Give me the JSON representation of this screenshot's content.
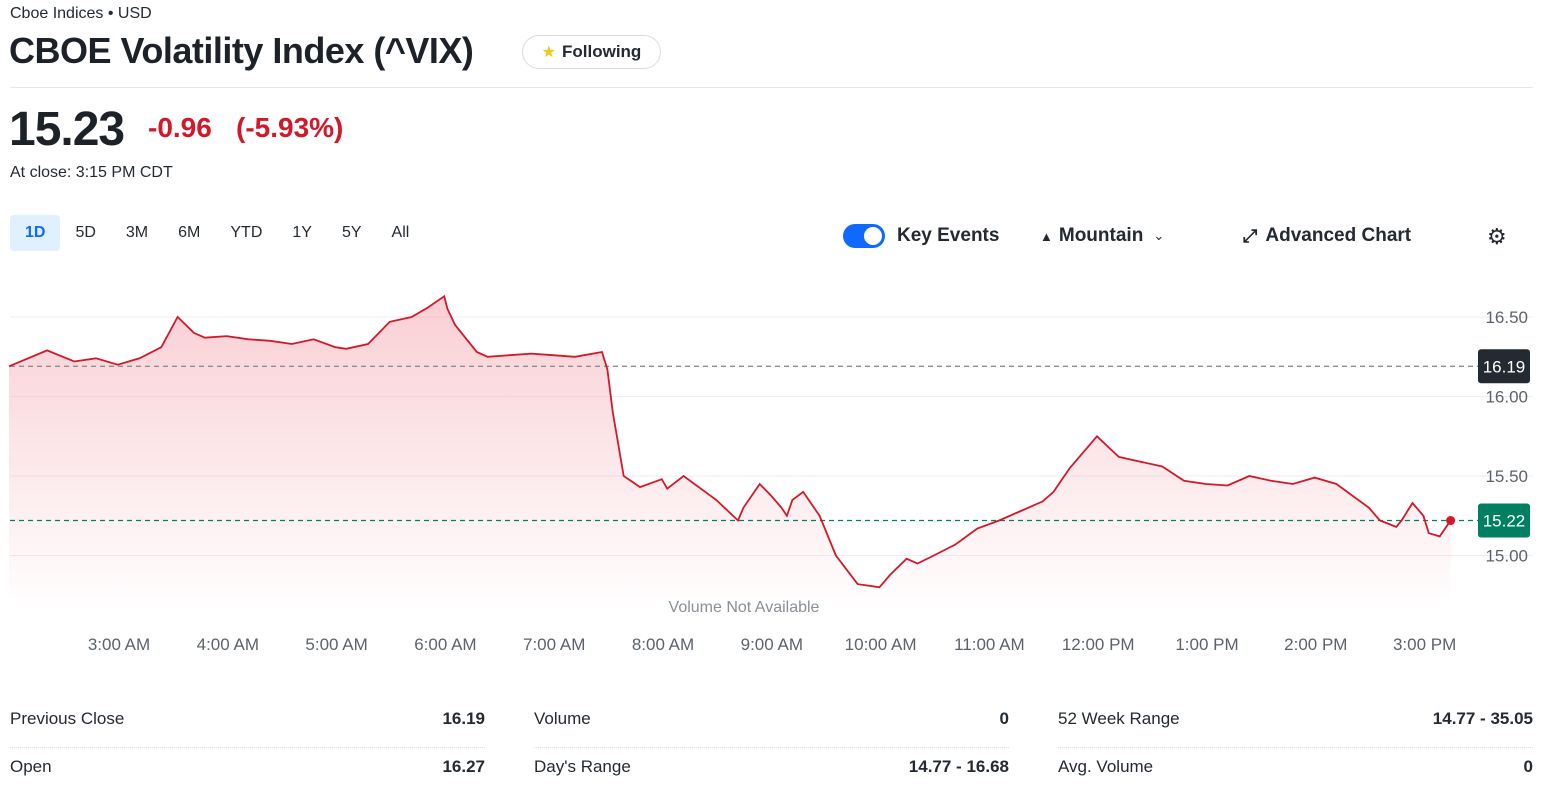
{
  "header": {
    "exchange": "Cboe Indices • USD",
    "title": "CBOE Volatility Index (^VIX)",
    "follow_label": "Following",
    "follow_icon": "star-icon"
  },
  "quote": {
    "price": "15.23",
    "change": "-0.96",
    "change_pct": "(-5.93%)",
    "close_time": "At close: 3:15 PM CDT",
    "down_color": "#d3182a"
  },
  "ranges": [
    {
      "label": "1D",
      "active": true
    },
    {
      "label": "5D"
    },
    {
      "label": "3M"
    },
    {
      "label": "6M"
    },
    {
      "label": "YTD"
    },
    {
      "label": "1Y"
    },
    {
      "label": "5Y"
    },
    {
      "label": "All"
    }
  ],
  "toolbar": {
    "key_events_label": "Key Events",
    "key_events_on": true,
    "chart_type_label": "Mountain",
    "advanced_label": "Advanced Chart",
    "settings_icon": "gear-icon"
  },
  "chart_data": {
    "type": "area",
    "volume_note": "Volume Not Available",
    "x_ticks": [
      "3:00 AM",
      "4:00 AM",
      "5:00 AM",
      "6:00 AM",
      "7:00 AM",
      "8:00 AM",
      "9:00 AM",
      "10:00 AM",
      "11:00 AM",
      "12:00 PM",
      "1:00 PM",
      "2:00 PM",
      "3:00 PM"
    ],
    "y_ticks": [
      "16.50",
      "16.00",
      "15.50",
      "15.00"
    ],
    "ylim": [
      14.6,
      16.9
    ],
    "previous_close": 16.19,
    "previous_close_label": "16.19",
    "last_value": 15.22,
    "last_label": "15.22",
    "line_color": "#d3182a",
    "up_badge_color": "#008060",
    "series": [
      {
        "x": [
          2.0,
          2.35,
          2.6,
          2.8,
          3.0,
          3.2,
          3.4,
          3.55,
          3.7,
          3.8,
          4.0,
          4.2,
          4.4,
          4.6,
          4.8,
          5.0,
          5.1,
          5.3,
          5.5,
          5.7,
          5.85,
          6.0,
          6.03,
          6.1,
          6.3,
          6.4,
          6.6,
          6.8,
          7.0,
          7.2,
          7.45,
          7.5,
          7.55,
          7.65,
          7.8,
          8.0,
          8.05,
          8.2,
          8.5,
          8.7,
          8.75,
          8.9,
          9.0,
          9.1,
          9.15,
          9.2,
          9.3,
          9.45,
          9.6,
          9.8,
          10.0,
          10.1,
          10.25,
          10.35,
          10.5,
          10.7,
          10.9,
          11.1,
          11.3,
          11.5,
          11.6,
          11.75,
          12.0,
          12.2,
          12.4,
          12.6,
          12.8,
          13.0,
          13.2,
          13.4,
          13.6,
          13.8,
          14.0,
          14.2,
          14.5,
          14.6,
          14.75,
          14.8,
          14.9,
          15.0,
          15.05,
          15.15,
          15.25
        ],
        "y": [
          16.19,
          16.29,
          16.22,
          16.24,
          16.2,
          16.24,
          16.31,
          16.5,
          16.4,
          16.37,
          16.38,
          16.36,
          16.35,
          16.33,
          16.36,
          16.31,
          16.3,
          16.33,
          16.47,
          16.5,
          16.56,
          16.63,
          16.55,
          16.45,
          16.28,
          16.25,
          16.26,
          16.27,
          16.26,
          16.25,
          16.28,
          16.17,
          15.9,
          15.5,
          15.43,
          15.48,
          15.42,
          15.5,
          15.35,
          15.22,
          15.3,
          15.45,
          15.38,
          15.3,
          15.25,
          15.35,
          15.4,
          15.25,
          15.0,
          14.82,
          14.8,
          14.88,
          14.98,
          14.95,
          15.0,
          15.07,
          15.17,
          15.22,
          15.28,
          15.34,
          15.4,
          15.55,
          15.75,
          15.62,
          15.59,
          15.56,
          15.47,
          15.45,
          15.44,
          15.5,
          15.47,
          15.45,
          15.49,
          15.45,
          15.3,
          15.22,
          15.18,
          15.22,
          15.33,
          15.25,
          15.14,
          15.12,
          15.22
        ]
      }
    ]
  },
  "stats": [
    [
      {
        "label": "Previous Close",
        "value": "16.19"
      },
      {
        "label": "Open",
        "value": "16.27"
      }
    ],
    [
      {
        "label": "Volume",
        "value": "0"
      },
      {
        "label": "Day's Range",
        "value": "14.77 - 16.68"
      }
    ],
    [
      {
        "label": "52 Week Range",
        "value": "14.77 - 35.05"
      },
      {
        "label": "Avg. Volume",
        "value": "0"
      }
    ]
  ]
}
